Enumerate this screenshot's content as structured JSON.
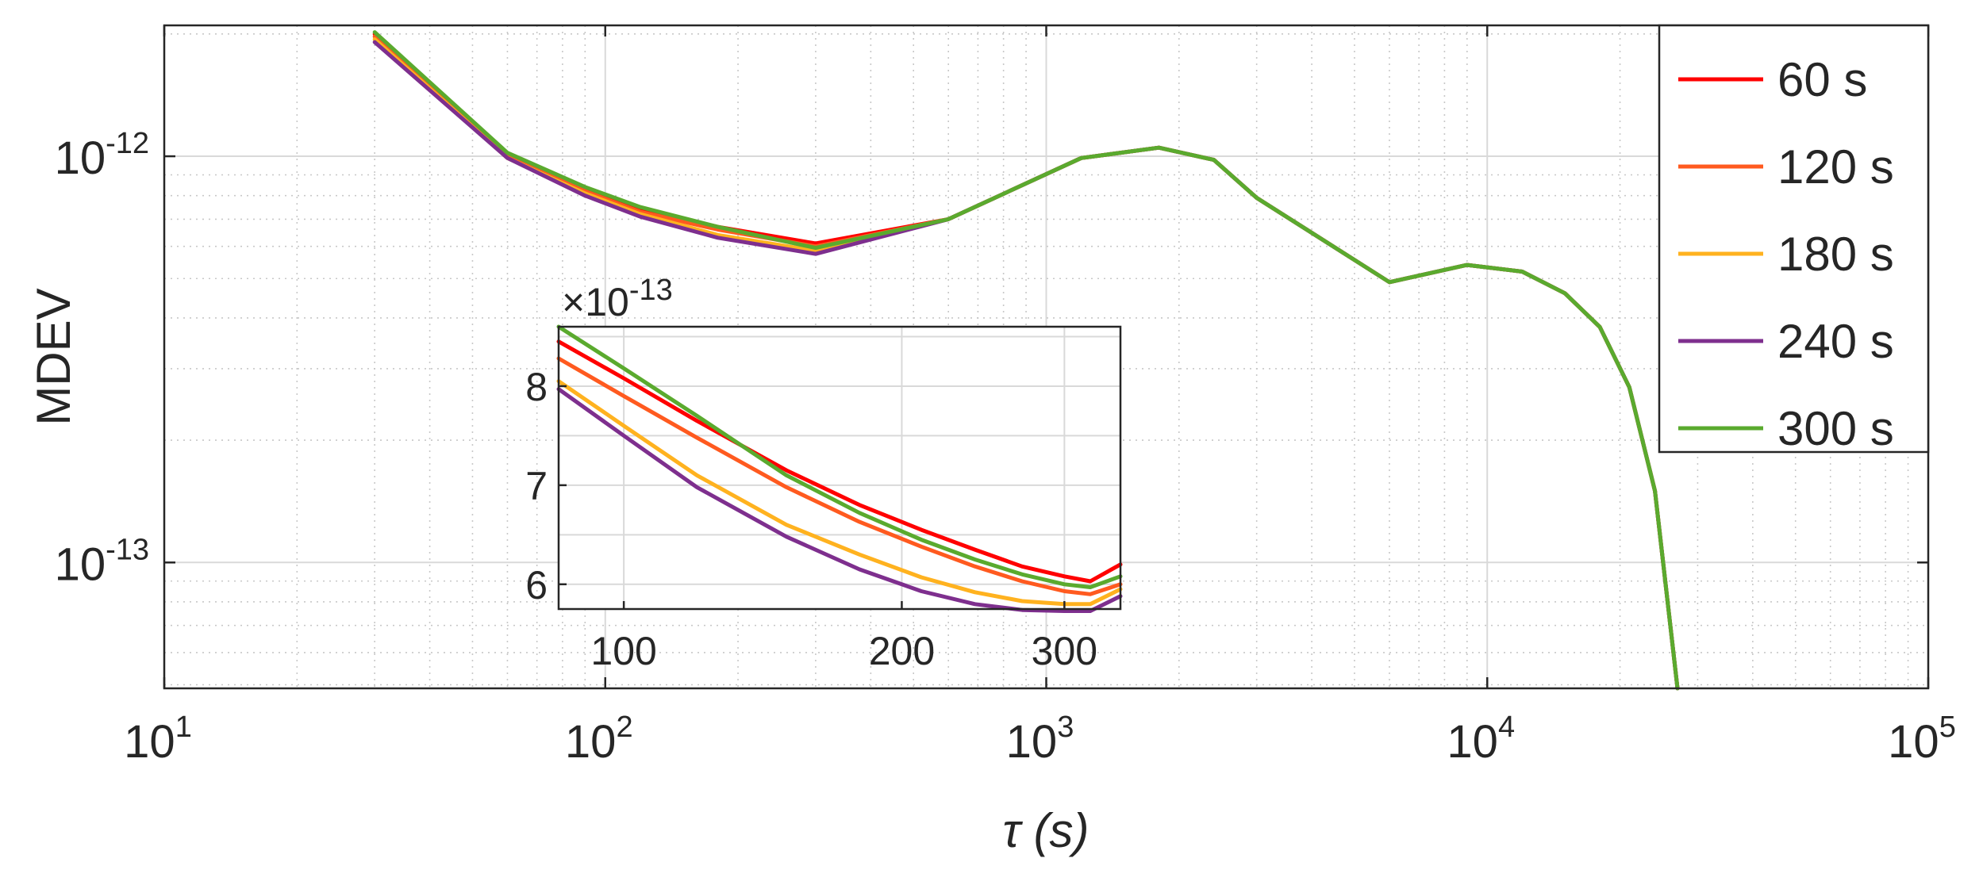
{
  "chart_data": [
    {
      "type": "line",
      "xlabel": "τ (s)",
      "ylabel": "MDEV",
      "xscale": "log",
      "yscale": "log",
      "xlim": [
        10,
        100000
      ],
      "ylim": [
        4.9e-14,
        2.1e-12
      ],
      "x_ticks": [
        {
          "base": "10",
          "exp": "1"
        },
        {
          "base": "10",
          "exp": "2"
        },
        {
          "base": "10",
          "exp": "3"
        },
        {
          "base": "10",
          "exp": "4"
        },
        {
          "base": "10",
          "exp": "5"
        }
      ],
      "y_ticks": [
        {
          "base": "10",
          "exp": "-13"
        },
        {
          "base": "10",
          "exp": "-12"
        }
      ],
      "grid": true,
      "legend": {
        "position": "top-right",
        "entries": [
          "60 s",
          "120 s",
          "180 s",
          "240 s",
          "300 s"
        ]
      },
      "series": [
        {
          "name": "60 s",
          "color": "#ff0000",
          "x": [
            30,
            60,
            90,
            120,
            180,
            300,
            600,
            1200,
            1800,
            2400,
            3000,
            6000,
            9000,
            12000,
            15000,
            18000,
            21000,
            24000,
            27000
          ],
          "y": [
            2e-12,
            1.01e-12,
            8.3e-13,
            7.4e-13,
            6.7e-13,
            6.1e-13,
            7e-13,
            9.9e-13,
            1.05e-12,
            9.8e-13,
            7.9e-13,
            4.9e-13,
            5.4e-13,
            5.2e-13,
            4.6e-13,
            3.8e-13,
            2.7e-13,
            1.5e-13,
            4.9e-14
          ]
        },
        {
          "name": "120 s",
          "color": "#ff5a1f",
          "x": [
            30,
            60,
            90,
            120,
            180,
            300,
            600,
            1200,
            1800,
            2400,
            3000,
            6000,
            9000,
            12000,
            15000,
            18000,
            21000,
            24000,
            27000
          ],
          "y": [
            1.97e-12,
            1e-12,
            8.2e-13,
            7.3e-13,
            6.6e-13,
            6e-13,
            7e-13,
            9.9e-13,
            1.05e-12,
            9.8e-13,
            7.9e-13,
            4.9e-13,
            5.4e-13,
            5.2e-13,
            4.6e-13,
            3.8e-13,
            2.7e-13,
            1.5e-13,
            4.9e-14
          ]
        },
        {
          "name": "180 s",
          "color": "#ffb21f",
          "x": [
            30,
            60,
            90,
            120,
            180,
            300,
            600,
            1200,
            1800,
            2400,
            3000,
            6000,
            9000,
            12000,
            15000,
            18000,
            21000,
            24000,
            27000
          ],
          "y": [
            1.94e-12,
            9.9e-13,
            8.1e-13,
            7.2e-13,
            6.4e-13,
            5.85e-13,
            7e-13,
            9.9e-13,
            1.05e-12,
            9.8e-13,
            7.9e-13,
            4.9e-13,
            5.4e-13,
            5.2e-13,
            4.6e-13,
            3.8e-13,
            2.7e-13,
            1.5e-13,
            4.9e-14
          ]
        },
        {
          "name": "240 s",
          "color": "#7e2f8e",
          "x": [
            30,
            60,
            90,
            120,
            180,
            300,
            600,
            1200,
            1800,
            2400,
            3000,
            6000,
            9000,
            12000,
            15000,
            18000,
            21000,
            24000,
            27000
          ],
          "y": [
            1.91e-12,
            9.9e-13,
            8e-13,
            7.1e-13,
            6.3e-13,
            5.75e-13,
            7e-13,
            9.9e-13,
            1.05e-12,
            9.8e-13,
            7.9e-13,
            4.9e-13,
            5.4e-13,
            5.2e-13,
            4.6e-13,
            3.8e-13,
            2.7e-13,
            1.5e-13,
            4.9e-14
          ]
        },
        {
          "name": "300 s",
          "color": "#5aaa2e",
          "x": [
            30,
            60,
            90,
            120,
            180,
            300,
            600,
            1200,
            1800,
            2400,
            3000,
            6000,
            9000,
            12000,
            15000,
            18000,
            21000,
            24000,
            27000
          ],
          "y": [
            2.02e-12,
            1.02e-12,
            8.4e-13,
            7.5e-13,
            6.7e-13,
            5.95e-13,
            7e-13,
            9.9e-13,
            1.05e-12,
            9.8e-13,
            7.9e-13,
            4.9e-13,
            5.4e-13,
            5.2e-13,
            4.6e-13,
            3.8e-13,
            2.7e-13,
            1.5e-13,
            4.9e-14
          ]
        }
      ]
    },
    {
      "type": "line",
      "role": "inset",
      "xscale": "log",
      "xlim": [
        85,
        345
      ],
      "ylim": [
        5.75,
        8.6
      ],
      "exponent_label": {
        "prefix": "×10",
        "exp": "-13"
      },
      "x_ticks": [
        100,
        200,
        300
      ],
      "y_ticks": [
        6,
        7,
        8
      ],
      "grid": true,
      "series": [
        {
          "name": "60 s",
          "color": "#ff0000",
          "x": [
            85,
            100,
            120,
            150,
            180,
            210,
            240,
            270,
            300,
            320,
            345
          ],
          "y": [
            8.45,
            8.08,
            7.65,
            7.15,
            6.8,
            6.55,
            6.35,
            6.18,
            6.08,
            6.03,
            6.2
          ]
        },
        {
          "name": "120 s",
          "color": "#ff5a1f",
          "x": [
            85,
            100,
            120,
            150,
            180,
            210,
            240,
            270,
            300,
            320,
            345
          ],
          "y": [
            8.28,
            7.9,
            7.48,
            6.98,
            6.63,
            6.38,
            6.18,
            6.03,
            5.93,
            5.9,
            6.0
          ]
        },
        {
          "name": "180 s",
          "color": "#ffb21f",
          "x": [
            85,
            100,
            120,
            150,
            180,
            210,
            240,
            270,
            300,
            320,
            345
          ],
          "y": [
            8.05,
            7.6,
            7.1,
            6.6,
            6.3,
            6.07,
            5.92,
            5.83,
            5.8,
            5.8,
            5.95
          ]
        },
        {
          "name": "240 s",
          "color": "#7e2f8e",
          "x": [
            85,
            100,
            120,
            150,
            180,
            210,
            240,
            270,
            300,
            320,
            345
          ],
          "y": [
            7.97,
            7.5,
            6.98,
            6.48,
            6.15,
            5.93,
            5.8,
            5.74,
            5.72,
            5.73,
            5.88
          ]
        },
        {
          "name": "300 s",
          "color": "#5aaa2e",
          "x": [
            85,
            100,
            120,
            150,
            180,
            210,
            240,
            270,
            300,
            320,
            345
          ],
          "y": [
            8.6,
            8.18,
            7.7,
            7.1,
            6.72,
            6.45,
            6.25,
            6.1,
            6.0,
            5.97,
            6.08
          ]
        }
      ]
    }
  ]
}
